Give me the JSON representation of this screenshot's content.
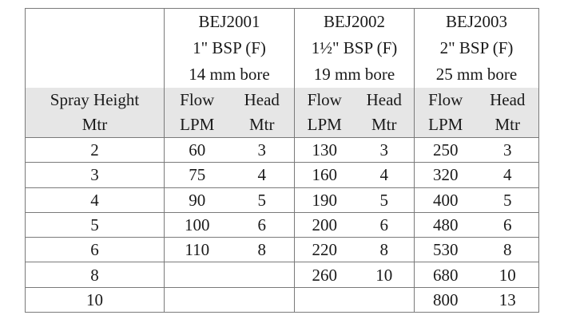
{
  "models": [
    {
      "code": "BEJ2001",
      "connection": "1\" BSP (F)",
      "bore": "14 mm bore"
    },
    {
      "code": "BEJ2002",
      "connection": "1½\" BSP (F)",
      "bore": "19 mm bore"
    },
    {
      "code": "BEJ2003",
      "connection": "2\" BSP (F)",
      "bore": "25 mm bore"
    }
  ],
  "column_headers": {
    "spray_height": {
      "line1": "Spray Height",
      "line2": "Mtr"
    },
    "flow": {
      "line1": "Flow",
      "line2": "LPM"
    },
    "head": {
      "line1": "Head",
      "line2": "Mtr"
    }
  },
  "colors": {
    "header_band": "#e6e6e6",
    "border": "#7a7a7a"
  },
  "rows": [
    [
      "2",
      "60",
      "3",
      "130",
      "3",
      "250",
      "3"
    ],
    [
      "3",
      "75",
      "4",
      "160",
      "4",
      "320",
      "4"
    ],
    [
      "4",
      "90",
      "5",
      "190",
      "5",
      "400",
      "5"
    ],
    [
      "5",
      "100",
      "6",
      "200",
      "6",
      "480",
      "6"
    ],
    [
      "6",
      "110",
      "8",
      "220",
      "8",
      "530",
      "8"
    ],
    [
      "8",
      "",
      "",
      "260",
      "10",
      "680",
      "10"
    ],
    [
      "10",
      "",
      "",
      "",
      "",
      "800",
      "13"
    ]
  ]
}
